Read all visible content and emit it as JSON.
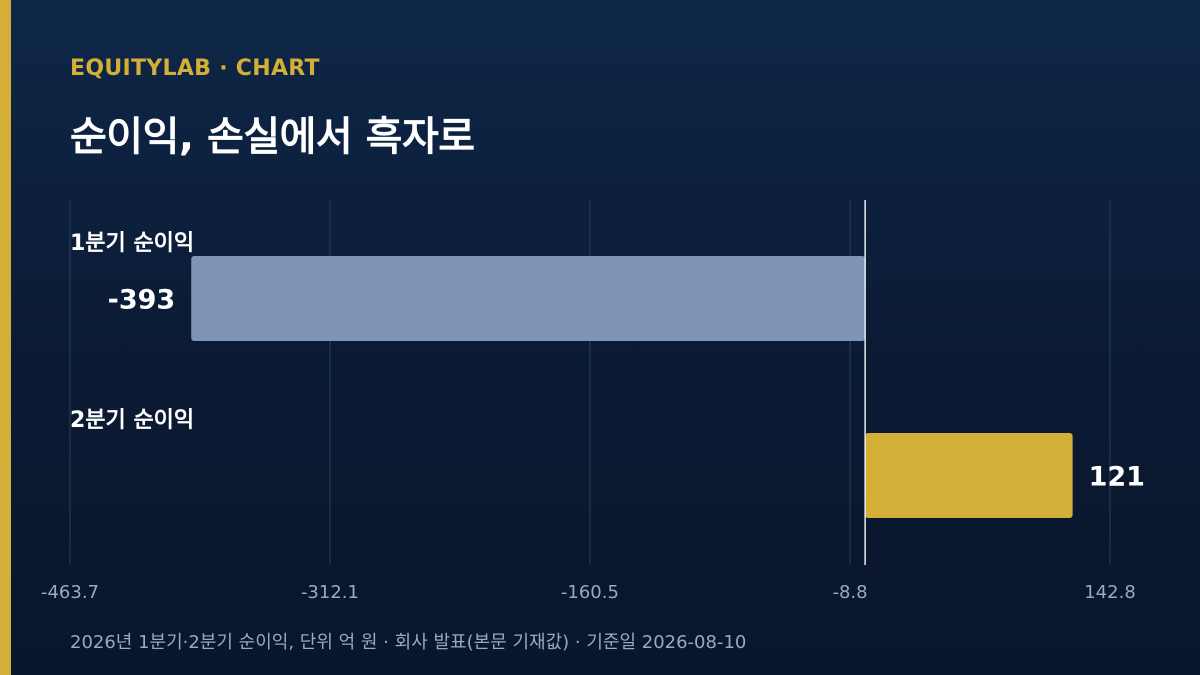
{
  "brand": "EQUITYLAB · CHART",
  "title": "순이익, 손실에서 흑자로",
  "footnote": "2026년 1분기·2분기 순이익, 단위 억 원 · 회사 발표(본문 기재값) · 기준일 2026-08-10",
  "chart_data": {
    "type": "bar",
    "orientation": "horizontal",
    "categories": [
      "1분기 순이익",
      "2분기 순이익"
    ],
    "values": [
      -393,
      121
    ],
    "value_labels": [
      "-393",
      "121"
    ],
    "xlim": [
      -463.7,
      142.8
    ],
    "xticks": [
      -463.7,
      -312.1,
      -160.5,
      -8.8,
      142.8
    ],
    "xtick_labels": [
      "-463.7",
      "-312.1",
      "-160.5",
      "-8.8",
      "142.8"
    ],
    "grid": true,
    "colors": {
      "negative": "#7f95b7",
      "positive": "#d4af37",
      "grid": "#2a3e5c",
      "zero_line": "#e8ecf2",
      "tick_text": "#9aa8c0"
    }
  }
}
